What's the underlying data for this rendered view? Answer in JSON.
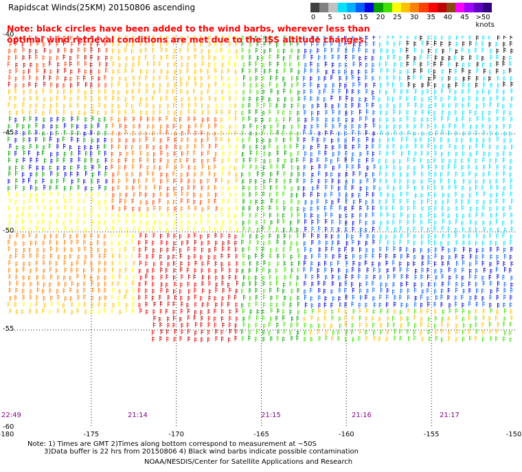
{
  "header": {
    "title": "Rapidscat Winds(25KM) 20150806 ascending",
    "note": "Note: black circles have been added to the wind barbs, wherever less than optimal wind retrieval conditions are met due to the ISS altitude changes."
  },
  "legend": {
    "labels": [
      "0",
      "5",
      "10",
      "15",
      "20",
      "25",
      "30",
      "35",
      "40",
      "45",
      ">50 knots"
    ],
    "colors": [
      "#404040",
      "#808080",
      "#c0c0c0",
      "#00e0ff",
      "#00b0ff",
      "#0060ff",
      "#0000e0",
      "#00a000",
      "#40e000",
      "#ffff00",
      "#ffc000",
      "#ff8000",
      "#ff4000",
      "#ff0000",
      "#c00000",
      "#8b4513",
      "#ff00ff",
      "#a000ff",
      "#6000c0",
      "#300080"
    ]
  },
  "map": {
    "lat_labels": [
      "-40",
      "-45",
      "-50",
      "-55",
      "-60"
    ],
    "lon_labels": [
      "-180",
      "-175",
      "-170",
      "-165",
      "-160",
      "-155",
      "-150"
    ],
    "time_labels": [
      "22:49",
      "21:14",
      "21:15",
      "21:16",
      "21:17"
    ],
    "lat_range": [
      -60,
      -40
    ],
    "lon_range": [
      -180,
      -150
    ]
  },
  "footer": {
    "notes_line1": "Note: 1) Times are GMT 2)Times along bottom correspond to measurement at ~50S",
    "notes_line2": "3)Data buffer is 22 hrs from 20150806 4) Black wind barbs indicate possible contamination",
    "credit": "NOAA/NESDIS/Center for Satellite Applications and Research"
  }
}
